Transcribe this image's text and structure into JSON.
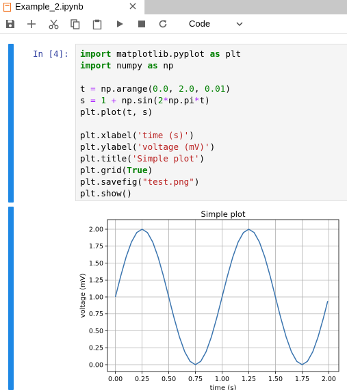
{
  "tab": {
    "title": "Example_2.ipynb",
    "icon": "notebook-icon"
  },
  "toolbar": {
    "buttons": [
      "save-icon",
      "plus-icon",
      "scissors-icon",
      "copy-icon",
      "paste-icon",
      "play-icon",
      "stop-icon",
      "restart-icon"
    ],
    "cell_type": "Code"
  },
  "cell": {
    "prompt": "In [4]:",
    "code_lines": [
      "import matplotlib.pyplot as plt",
      "import numpy as np",
      "",
      "t = np.arange(0.0, 2.0, 0.01)",
      "s = 1 + np.sin(2*np.pi*t)",
      "plt.plot(t, s)",
      "",
      "plt.xlabel('time (s)')",
      "plt.ylabel('voltage (mV)')",
      "plt.title('Simple plot')",
      "plt.grid(True)",
      "plt.savefig(\"test.png\")",
      "plt.show()"
    ]
  },
  "colors": {
    "accent": "#1e88e5",
    "line": "#3b75af",
    "prompt": "#303f9f"
  },
  "chart_data": {
    "type": "line",
    "title": "Simple plot",
    "xlabel": "time (s)",
    "ylabel": "voltage (mV)",
    "xlim": [
      0.0,
      2.0
    ],
    "ylim": [
      0.0,
      2.0
    ],
    "xticks": [
      "0.00",
      "0.25",
      "0.50",
      "0.75",
      "1.00",
      "1.25",
      "1.50",
      "1.75",
      "2.00"
    ],
    "yticks": [
      "0.00",
      "0.25",
      "0.50",
      "0.75",
      "1.00",
      "1.25",
      "1.50",
      "1.75",
      "2.00"
    ],
    "grid": true,
    "x": [
      0.0,
      0.05,
      0.1,
      0.15,
      0.2,
      0.25,
      0.3,
      0.35,
      0.4,
      0.45,
      0.5,
      0.55,
      0.6,
      0.65,
      0.7,
      0.75,
      0.8,
      0.85,
      0.9,
      0.95,
      1.0,
      1.05,
      1.1,
      1.15,
      1.2,
      1.25,
      1.3,
      1.35,
      1.4,
      1.45,
      1.5,
      1.55,
      1.6,
      1.65,
      1.7,
      1.75,
      1.8,
      1.85,
      1.9,
      1.95,
      1.99
    ],
    "y": [
      1.0,
      1.309,
      1.588,
      1.809,
      1.951,
      2.0,
      1.951,
      1.809,
      1.588,
      1.309,
      1.0,
      0.691,
      0.412,
      0.191,
      0.049,
      0.0,
      0.049,
      0.191,
      0.412,
      0.691,
      1.0,
      1.309,
      1.588,
      1.809,
      1.951,
      2.0,
      1.951,
      1.809,
      1.588,
      1.309,
      1.0,
      0.691,
      0.412,
      0.191,
      0.049,
      0.0,
      0.049,
      0.191,
      0.412,
      0.691,
      0.937
    ]
  }
}
